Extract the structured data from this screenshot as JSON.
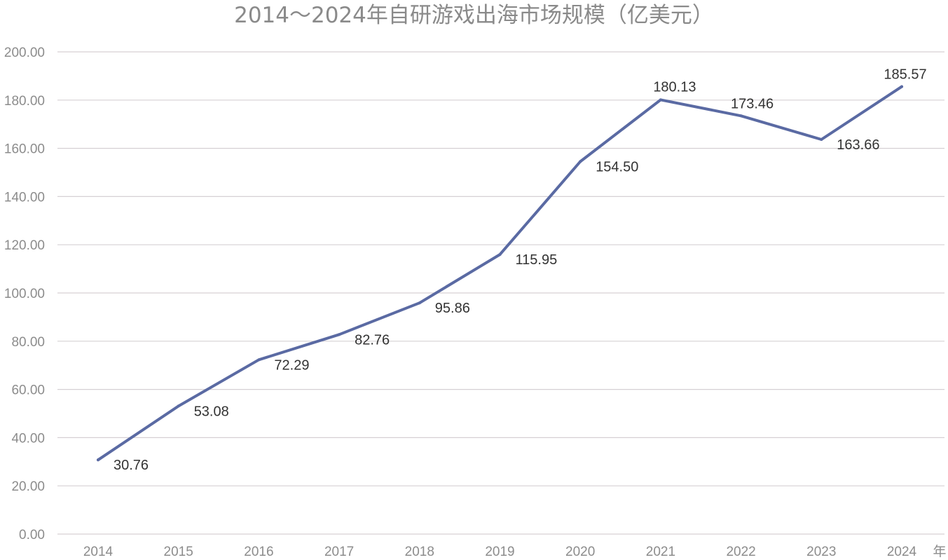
{
  "chart_data": {
    "type": "line",
    "title": "2014～2024年自研游戏出海市场规模（亿美元）",
    "xlabel": "年",
    "ylabel": "",
    "categories": [
      "2014",
      "2015",
      "2016",
      "2017",
      "2018",
      "2019",
      "2020",
      "2021",
      "2022",
      "2023",
      "2024"
    ],
    "series": [
      {
        "name": "",
        "values": [
          30.76,
          53.08,
          72.29,
          82.76,
          95.86,
          115.95,
          154.5,
          180.13,
          173.46,
          163.66,
          185.57
        ],
        "labels": [
          "30.76",
          "53.08",
          "72.29",
          "82.76",
          "95.86",
          "115.95",
          "154.50",
          "180.13",
          "173.46",
          "163.66",
          "185.57"
        ]
      }
    ],
    "y_ticks": [
      "0.00",
      "20.00",
      "40.00",
      "60.00",
      "80.00",
      "100.00",
      "120.00",
      "140.00",
      "160.00",
      "180.00",
      "200.00"
    ],
    "ylim": [
      0,
      200
    ],
    "grid": true,
    "legend": "none",
    "colors": {
      "line": "#5a6aa3",
      "grid": "#d6d0d4"
    }
  }
}
